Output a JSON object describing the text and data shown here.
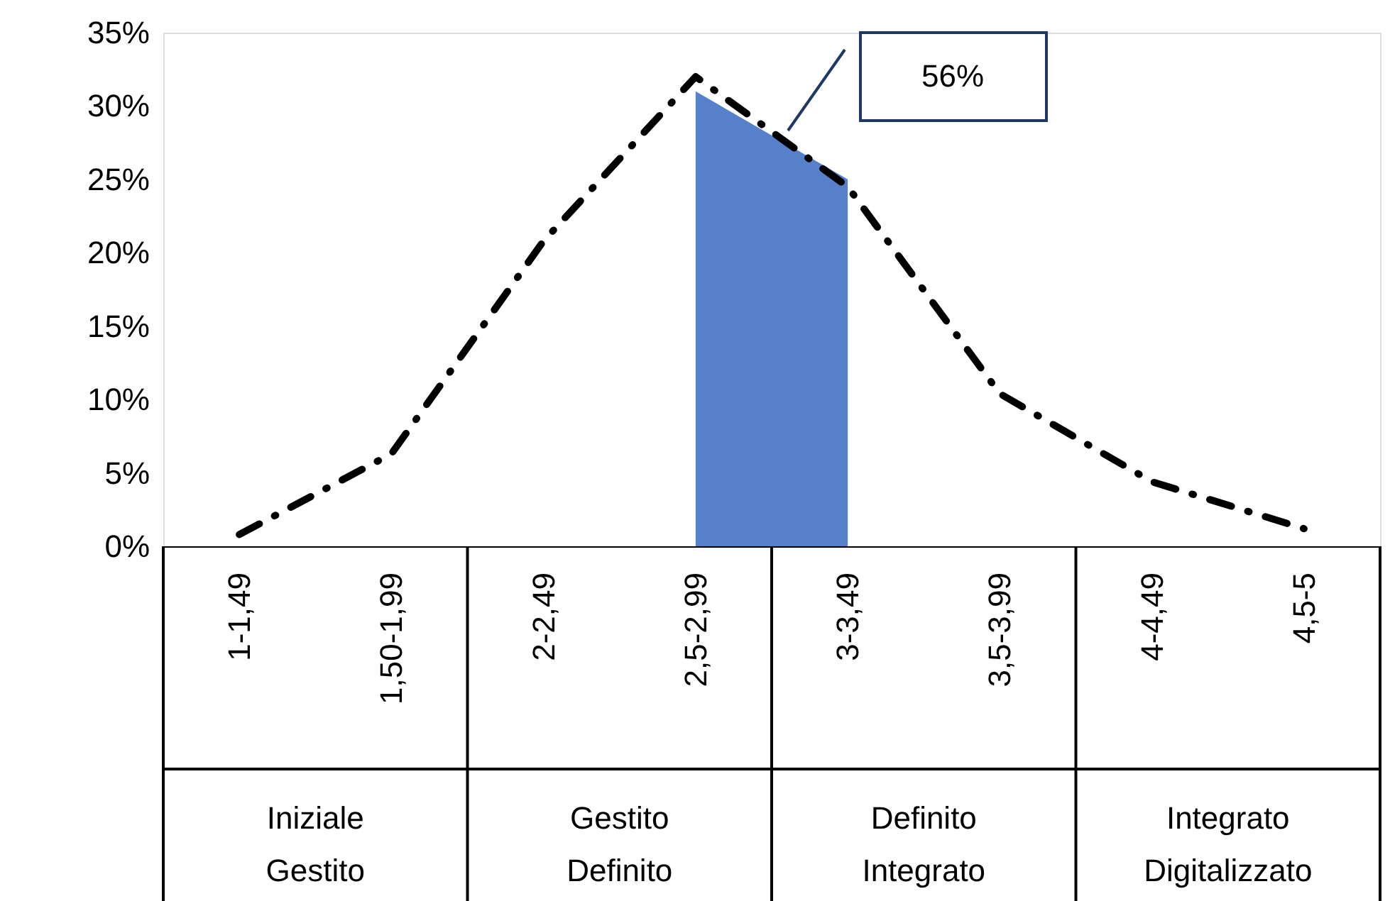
{
  "chart_data": {
    "type": "line",
    "categories": [
      "1-1,49",
      "1,50-1,99",
      "2-2,49",
      "2,5-2,99",
      "3-3,49",
      "3,5-3,99",
      "4-4,49",
      "4,5-5"
    ],
    "series": [
      {
        "type": "area",
        "color": "#4472c4",
        "values": [
          null,
          null,
          null,
          31,
          25,
          null,
          null,
          null
        ]
      },
      {
        "color": "#000000",
        "line_style": "dashed",
        "values": [
          0.8,
          6.3,
          20.8,
          32,
          24.5,
          10.4,
          4.4,
          1.2
        ]
      }
    ],
    "ylim": [
      0,
      35
    ],
    "yticks": [
      {
        "value": 0,
        "label": "0%"
      },
      {
        "value": 5,
        "label": "5%"
      },
      {
        "value": 10,
        "label": "10%"
      },
      {
        "value": 15,
        "label": "15%"
      },
      {
        "value": 20,
        "label": "20%"
      },
      {
        "value": 25,
        "label": "25%"
      },
      {
        "value": 30,
        "label": "30%"
      },
      {
        "value": 35,
        "label": "35%"
      }
    ],
    "grid": false,
    "annotations": [
      "56%",
      "Iniziale Gestito",
      "Gestito Definito",
      "Definito Integrato",
      "Integrato Digitalizzato"
    ]
  }
}
